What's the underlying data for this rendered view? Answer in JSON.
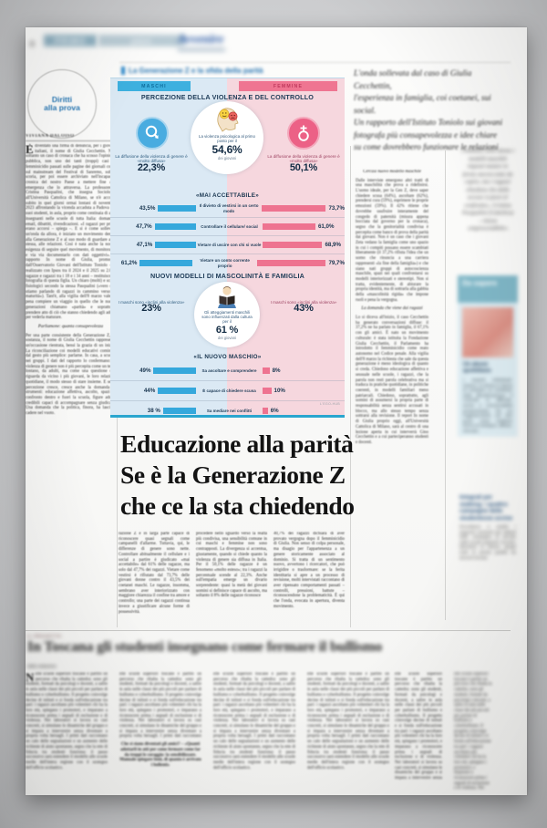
{
  "masthead": {
    "page_number": "8",
    "section_primary": "PRIMO",
    "section_secondary": "piano",
    "brand": "Avvenire"
  },
  "kicker": {
    "label": "La Generazione Z e la sfida della parità"
  },
  "badge": {
    "line1": "Diritti",
    "line2": "alla prova"
  },
  "standfirst": {
    "lines": [
      "L'onda sollevata dal caso di Giulia Cecchettin,",
      "l'esperienza in famiglia, coi coetanei, sui social.",
      "Un rapporto dell'Istituto Toniolo sui giovani",
      "fotografa più consapevolezza e idee chiare",
      "su come dovrebbero funzionare le relazioni"
    ]
  },
  "headline": {
    "line1": "Educazione alla parità",
    "line2": "Se è la Generazione Z",
    "line3": "che ce la sta chiedendo"
  },
  "article": {
    "byline": "VIVIANA DALOISO",
    "col1": {
      "drop_cap": "È",
      "p1": "diventato una firma di denuncia, per i giovani italiani, il nome di Giulia Cecchettin. Non soltanto un caso di cronaca che ha scosso l'opinione pubblica, non uno dei tanti (troppi) casi di femminicidio passati sulle pagine dei giornali come sul mainstream del Festival di Sanremo, subito scoria, per poi essere archiviato nell'incapacità cronica del nostro Paese a mettere fine alla emergenza che lo attraversa. La professoressa Cristina Pasqualini, che insegna Sociologia all'Università Cattolica di Milano, se n'è accorta subito in quei giorni ormai lontani di novembre 2023 affrontando la vicenda accaduta a Padova coi suoi studenti, in aula, proprio come centinaia di altri insegnanti nelle scuole di tutta Italia: domande, email, dibattiti, rivendicazioni. «I ragazzi per primi erano accorsi – spiega –. E si è come sollevata un'onda da allora, è iniziato un movimento dentro alla Generazione Z e al suo modo di guardare a se stessa, alle relazioni. Così è nata anche la nostra esigenza di seguire quel movimento, di monitorarlo e via via documentarlo con dati oggettivi». Il rapporto In nome di Giulia, promosso dall'Osservatorio Giovani dell'Istituto Toniolo – e realizzato con Ipsos tra il 2024 e il 2025 su 2.083 ragazze e ragazzi tra i 18 e i 34 anni – restituisce la fotografia di questa figlia. Un chiaro (molti) e scarti fisiologici secondo la stessa Pasqualini («vero che stiamo parlando di ragazzi in cammino verso la maturità»). Tant'è, alla vigilia dell'8 marzo vale la pena compiere un viaggio in quello che le nuove generazioni chiamano «parità» e soprattutto prendere atto di ciò che stanno chiedendo agli adulti per vederla maturare.",
      "subhead": "Parliamone: quanta consapevolezza",
      "p2": "Per una parte consistente della Generazione Z, in sostanza, il nome di Giulia Cecchettin rappresenta un'occasione rientrata, bensì la grazia di un inizio. La riconciliazione coi modelli educativi comincia dal gesto più semplice: parlarne. In casa, a scuola, nei gruppi. I dati del rapporto lo confermano: la violenza di genere non è più percepita come un tema lontano, da adulti, ma come una questione che riguarda da vicino i più giovani, le loro relazioni quotidiane, il modo stesso di stare insieme. E se la percezione cresce, cresce anche la domanda di strumenti: educazione affettiva, ascolto, spazi di confronto dentro e fuori la scuola, figure adulte credibili capaci di accompagnare senza giudicare. Una domanda che la politica, finora, ha lasciato cadere nel vuoto."
    },
    "cols_under_headline": [
      "razione Z è in larga parte capace di riconoscere quasi segnali come campanelli d'allarme. Tuttavia, qui, le differenze di genere sono nette. Controllare abitualmente il cellulare e i social a partire è giudicato «mai accettabile» dal 61% delle ragazze, ma solo dal 47,7% dei ragazzi. Vietare come vestirsi è rifiutato dal 73,7% delle giovani donne contro il 43,5% dei coetanei maschi. Le ragazze, insomma, sembrano aver interiorizzato con maggiore chiarezza il confine tra amore e controllo; una parte dei ragazzi continua invece a giustificare alcune forme di possessività.",
      "procedere nello sguardo verso la realtà più condivisa, una sensibilità comune in cui maschi e femmine non sono contrapposti. La divergenza si accentua, giustamente, quando si chiede quanto la violenza di genere sia diffusa in Italia. Per il 50,1% delle ragazze è un fenomeno «molto esteso»; tra i ragazzi la percentuale scende al 22,3%. Anche sull'empatia emerge un divario sorprendente: quasi la metà dei giovani uomini si definisce capace di ascolto, ma soltanto il 8% delle ragazze riconosce",
      "40,7% dei ragazzi dichiara di aver provato vergogna dopo il femminicidio di Giulia. Non senso di colpa personale, ma disagio per l'appartenenza a un genere storicamente associato al dominio. Si tratta di un sentimento nuovo, avvertono i ricercatori, che può irrigidire o trasformare: se la ferita identitaria si apre a un processo di revisione, molti intervistati raccontano di aver ripensato comportamenti passati – controlli, pressioni, battute – riconoscendone la problematicità. È qui che l'onda, evocata in apertura, diventa movimento."
    ],
    "right_col": {
      "subhead1": "Cercasi nuovo modello maschile",
      "p1": "Dalle interviste emergono altri tratti di una maschilità che prova a ridefinirsi. L'uomo ideale, per la Gen Z, deve saper chiedere scusa (64%), ascoltare (62%), prendersi cura (59%), esprimere le proprie emozioni (59%). Il 42% ritiene che dovrebbe usufruire interamente del congedo di paternità (misura appena bocciata dal governo per la cronaca), segno che la genitorialità condivisa è percepita come banco di prova della parità dai giovani. Non è un caso che i giovani Zeta vedano la famiglia come uno spazio in cui i compiti possano essere scambiati liberamente (il 37,2% rifiuta l'idea che un uomo che rinuncia a una carriera rappresenti «la fine della famiglia») e che siano nati gruppi di autocoscienza maschile, spazi nei quali confrontarsi su modelli interiorizzati e stereotipi. Non si tratta, evidentemente, di abiurare la propria identità, ma di sottrarla alla gabbia della «mascolinità rigida» che impone ruoli e pena la vergogna.",
      "subhead2": "La domanda che viene dai ragazzi",
      "p2": "Lo si diceva all'inizio, il caso Cecchettin ha generato conversazioni diffuse: il 37,2% ne ha parlato in famiglia, il 67,1% con gli amici. È nato un movimento culturale: è stata istituita la Fondazione Giulia Cecchettin, il Parlamento ha introdotto il femminicidio come reato autonomo nel Codice penale. Alla vigilia dell'8 marzo la richiesta che sale da questa generazione è meno ideologica di quanto si creda. Chiedono educazione affettiva e sessuale nelle scuole, i ragazzi, che la parola non resti parola celebrativa ma si traduca in pratiche quotidiane, in politiche coerenti, in modelli familiari meno patriarcali. Chiedono, soprattutto, agli uomini di assumersi la propria parte di responsabilità senza sentirsi accusati in blocco, ma allo stesso tempo senza sottrarsi alla revisione. Il report In nome di Giulia proprio oggi, all'Università Cattolica di Milano, sarà al centro di una lezione aperta in cui interverrà Gino Cecchettin e a cui parteciperanno studenti e docenti."
    }
  },
  "chart_data": {
    "type": "bar",
    "legend": {
      "male": "MASCHI",
      "female": "FEMMINE"
    },
    "colors": {
      "male": "#35a8dc",
      "female": "#ee7390",
      "male_bg": "#dbe9f4",
      "female_bg": "#f6d7de"
    },
    "ylim": [
      0,
      100
    ],
    "section1": {
      "title": "PERCEZIONE DELLA VIOLENZA E DEL CONTROLLO",
      "left": {
        "text": "La diffusione della violenza di genere è «molto diffusa»",
        "value": "22,3%"
      },
      "center": {
        "text": "La violenza psicologica al primo posto per il",
        "value": "54,6%",
        "suffix": "dei giovani"
      },
      "right": {
        "text": "La diffusione della violenza di genere è «molto diffusa»",
        "value": "50,1%"
      }
    },
    "charts": [
      {
        "title": "«MAI ACCETTABILE»",
        "series": [
          "Maschi",
          "Femmine"
        ],
        "rows": [
          {
            "label": "Il divieto di vestirsi in un certo modo",
            "m": 43.5,
            "m_label": "43,5%",
            "f": 73.7,
            "f_label": "73,7%"
          },
          {
            "label": "Controllare il cellulare/ social",
            "m": 47.7,
            "m_label": "47,7%",
            "f": 61.0,
            "f_label": "61,0%"
          },
          {
            "label": "Vietare di uscire con chi si vuole",
            "m": 47.1,
            "m_label": "47,1%",
            "f": 68.9,
            "f_label": "68,9%"
          },
          {
            "label": "Vietare un conto corrente proprio",
            "m": 61.2,
            "m_label": "61,2%",
            "f": 79.7,
            "f_label": "79,7%"
          }
        ]
      },
      {
        "title": "«IL NUOVO MASCHIO»",
        "series": [
          "Maschi",
          "Femmine"
        ],
        "rows": [
          {
            "label": "Sa ascoltare e comprendere",
            "m": 49,
            "m_label": "49%",
            "f": 8,
            "f_label": "8%"
          },
          {
            "label": "È capace di chiedere scusa",
            "m": 44,
            "m_label": "44%",
            "f": 10,
            "f_label": "10%"
          },
          {
            "label": "Sa mediare nei conflitti",
            "m": 38,
            "m_label": "38 %",
            "f": 6,
            "f_label": "6%"
          }
        ]
      }
    ],
    "section2": {
      "title": "NUOVI MODELLI DI MASCOLINITÀ E FAMIGLIA",
      "left": {
        "text": "I maschi sono «inclini alla violenza»",
        "value": "23%"
      },
      "center": {
        "text": "Gli atteggiamenti maschili sono influenzati dalla cultura per il",
        "value": "61 %",
        "suffix": "dei giovani"
      },
      "right": {
        "text": "I maschi sono «inclini alla violenza»",
        "value": "43%"
      }
    },
    "credit": "L'EGO-HUB"
  },
  "sidebar": {
    "quote": "«Vediamo nelle donne i modelli maschili imposti mutare in forme ancora tutte da capire, ma i ragazzi chiedono che dalle accuse si passi al confronto», Cristina Pasqualini (Cattolica) – ritiene «imprescindibile»",
    "box": {
      "header": "Da sapere",
      "title": "Un abuso quotidiano",
      "text": "I segnali individuati: l'autore, la donna in fascia di sostegno al contributo della liberalizzazione: il controllo si diffonde, anche a comunicabilità predominante, fra cui l'agghiacciante sui due punti: come restituire forma al sostegno, diffuso, ritrovato."
    },
    "block2": {
      "title": "Integrali per stalking: i quattro campagne delle studentesse uccise",
      "text": "Ricordiamo e analisi i seguenti momenti più salienti delle campagne di ascolto nelle scuole superiori: incontri, laboratori di lettura, gruppi misti di parola guidati da docenti formati."
    }
  },
  "bottom_article": {
    "kicker": "IL PROGETTO",
    "headline": "In Toscana gli studenti insegnano come fermare il bullismo",
    "byline": "dalla redazione",
    "col1_drop": "N",
    "bold_block": "Che si siano diventati gli amici? – «Quanti adottarli in atti per come fermare come far da troppi le coraggio: la sensibilizzare. Manuale spiegare beni, di quanto è arrivato i bollenti»",
    "col_text": "elle scuole superiori toscane è partito un percorso che ribalta la cattedra: sono gli studenti, formati da psicologi e docenti, a salire in aula nelle classi dei più piccoli per parlare di bullismo e cyberbullismo. Il progetto coinvolge decine di istituti e si fonda sull'educazione tra pari: i ragazzi ascoltano più volentieri chi ha la loro età, spiegano i promotori, e imparano a riconoscere prima i segnali di esclusione e di violenza. Nei laboratori si lavora su casi concreti, si simulano le dinamiche del gruppo e si impara a intervenire senza diventare a propria volta bersagli. I primi dati raccontano un calo delle segnalazioni e un aumento delle richieste di aiuto spontanee, segno che la rete di fiducia tra studenti funziona: il passo successivo sarà estendere il modello alle scuole medie dell'intera regione con il sostegno dell'ufficio scolastico."
  }
}
